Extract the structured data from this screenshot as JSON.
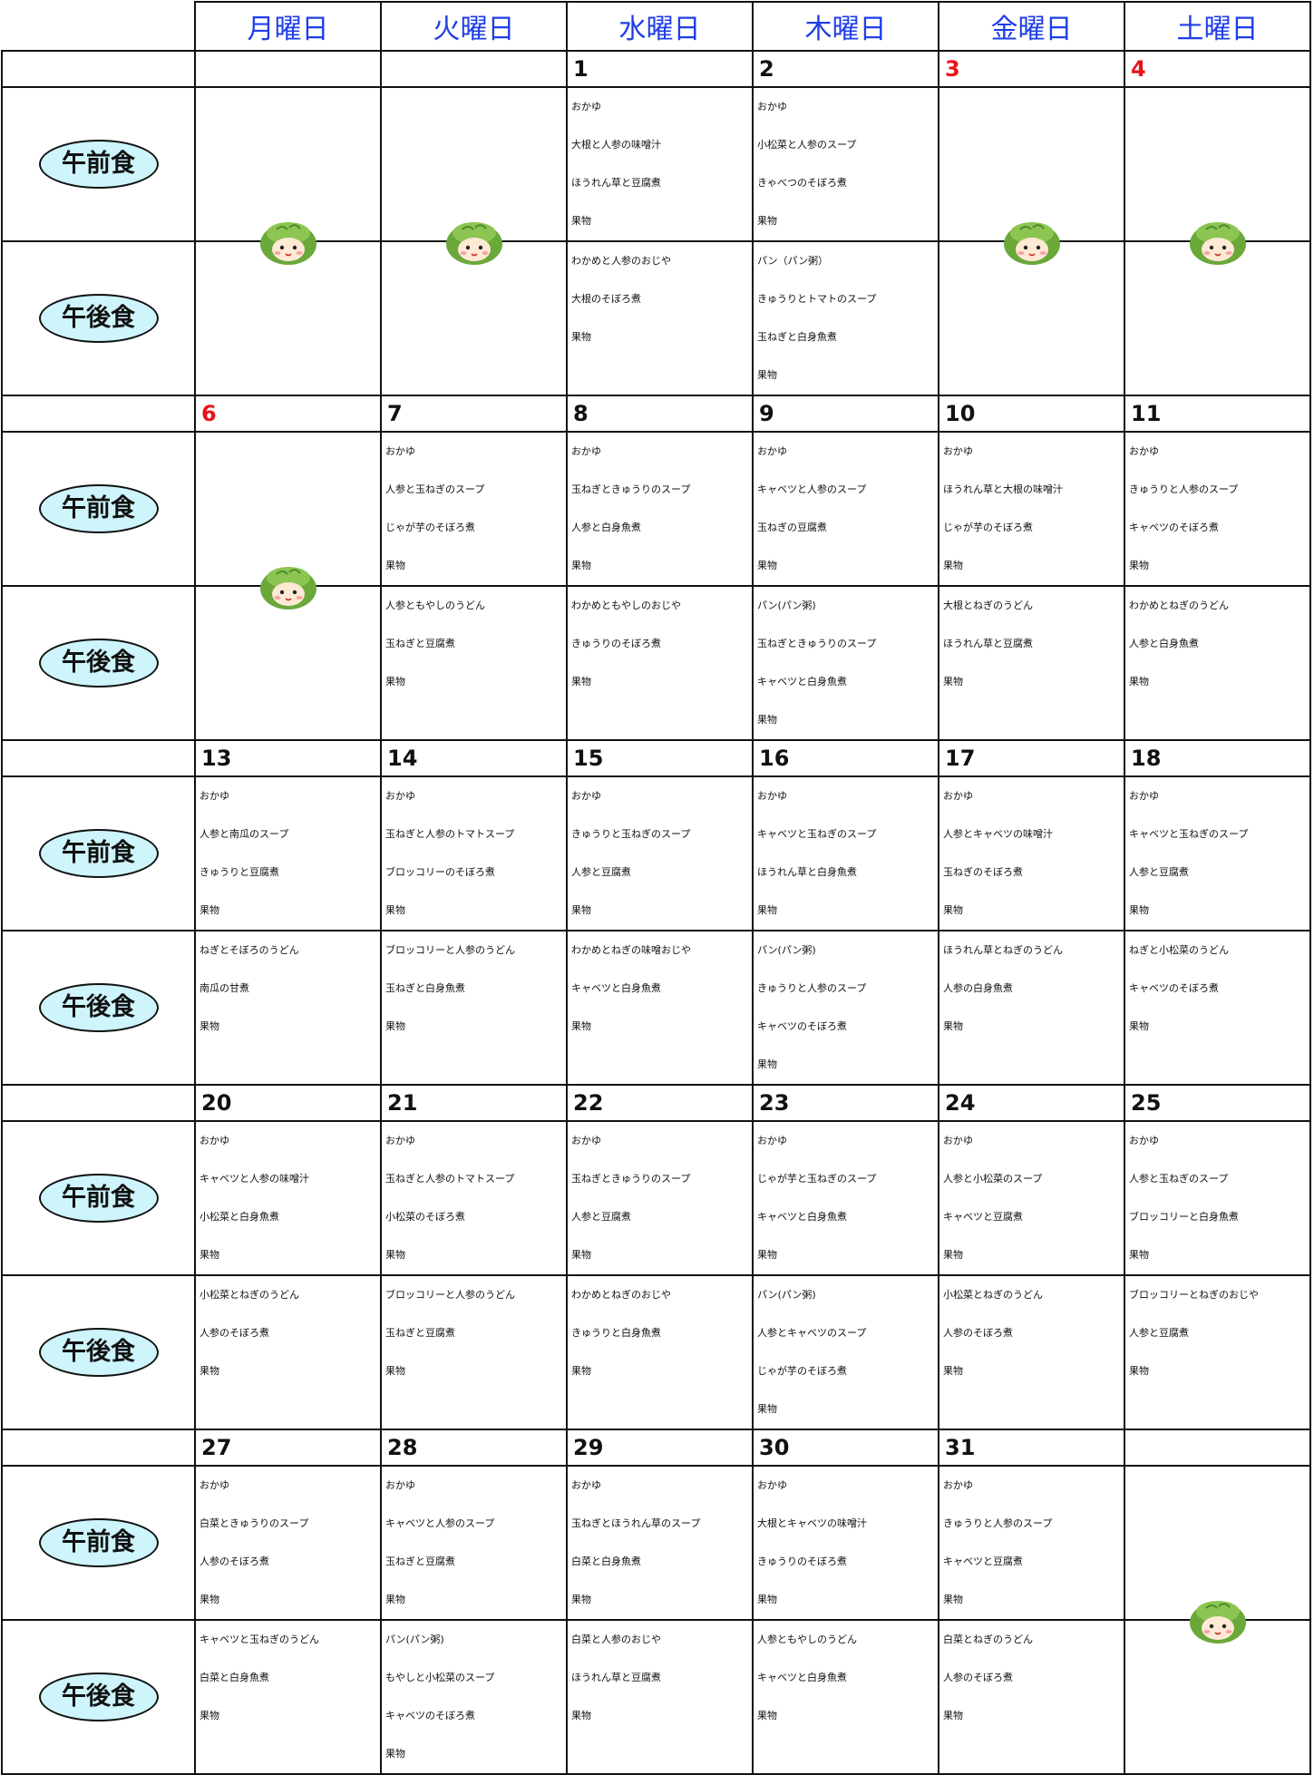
{
  "days": [
    "月曜日",
    "火曜日",
    "水曜日",
    "木曜日",
    "金曜日",
    "土曜日"
  ],
  "meal_labels": [
    "午前食",
    "午後食"
  ],
  "holidays": [
    3,
    4,
    6
  ],
  "holiday_color": "#e8141b",
  "weeks": [
    {
      "dates": [
        null,
        null,
        1,
        2,
        3,
        4
      ],
      "am": [
        null,
        null,
        [
          "おかゆ",
          "大根と人参の味噌汁",
          "ほうれん草と豆腐煮",
          "果物"
        ],
        [
          "おかゆ",
          "小松菜と人参のスープ",
          "きゃべつのそぼろ煮",
          "果物"
        ],
        null,
        null
      ],
      "pm": [
        null,
        null,
        [
          "わかめと人参のおじや",
          "大根のそぼろ煮",
          "果物"
        ],
        [
          "パン（パン粥）",
          "きゅうりとトマトのスープ",
          "玉ねぎと白身魚煮",
          "果物"
        ],
        null,
        null
      ]
    },
    {
      "dates": [
        6,
        7,
        8,
        9,
        10,
        11
      ],
      "am": [
        null,
        [
          "おかゆ",
          "人参と玉ねぎのスープ",
          "じゃが芋のそぼろ煮",
          "果物"
        ],
        [
          "おかゆ",
          "玉ねぎときゅうりのスープ",
          "人参と白身魚煮",
          "果物"
        ],
        [
          "おかゆ",
          "キャベツと人参のスープ",
          "玉ねぎの豆腐煮",
          "果物"
        ],
        [
          "おかゆ",
          "ほうれん草と大根の味噌汁",
          "じゃが芋のそぼろ煮",
          "果物"
        ],
        [
          "おかゆ",
          "きゅうりと人参のスープ",
          "キャベツのそぼろ煮",
          "果物"
        ]
      ],
      "pm": [
        null,
        [
          "人参ともやしのうどん",
          "玉ねぎと豆腐煮",
          "果物"
        ],
        [
          "わかめともやしのおじや",
          "きゅうりのそぼろ煮",
          "果物"
        ],
        [
          "パン(パン粥)",
          "玉ねぎときゅうりのスープ",
          "キャベツと白身魚煮",
          "果物"
        ],
        [
          "大根とねぎのうどん",
          "ほうれん草と豆腐煮",
          "果物"
        ],
        [
          "わかめとねぎのうどん",
          "人参と白身魚煮",
          "果物"
        ]
      ]
    },
    {
      "dates": [
        13,
        14,
        15,
        16,
        17,
        18
      ],
      "am": [
        [
          "おかゆ",
          "人参と南瓜のスープ",
          "きゅうりと豆腐煮",
          "果物"
        ],
        [
          "おかゆ",
          "玉ねぎと人参のトマトスープ",
          "ブロッコリーのそぼろ煮",
          "果物"
        ],
        [
          "おかゆ",
          "きゅうりと玉ねぎのスープ",
          "人参と豆腐煮",
          "果物"
        ],
        [
          "おかゆ",
          "キャベツと玉ねぎのスープ",
          "ほうれん草と白身魚煮",
          "果物"
        ],
        [
          "おかゆ",
          "人参とキャベツの味噌汁",
          "玉ねぎのそぼろ煮",
          "果物"
        ],
        [
          "おかゆ",
          "キャベツと玉ねぎのスープ",
          "人参と豆腐煮",
          "果物"
        ]
      ],
      "pm": [
        [
          "ねぎとそぼろのうどん",
          "南瓜の甘煮",
          "果物"
        ],
        [
          "ブロッコリーと人参のうどん",
          "玉ねぎと白身魚煮",
          "果物"
        ],
        [
          "わかめとねぎの味噌おじや",
          "キャベツと白身魚煮",
          "果物"
        ],
        [
          "パン(パン粥)",
          "きゅうりと人参のスープ",
          "キャベツのそぼろ煮",
          "果物"
        ],
        [
          "ほうれん草とねぎのうどん",
          "人参の白身魚煮",
          "果物"
        ],
        [
          "ねぎと小松菜のうどん",
          "キャベツのそぼろ煮",
          "果物"
        ]
      ]
    },
    {
      "dates": [
        20,
        21,
        22,
        23,
        24,
        25
      ],
      "am": [
        [
          "おかゆ",
          "キャベツと人参の味噌汁",
          "小松菜と白身魚煮",
          "果物"
        ],
        [
          "おかゆ",
          "玉ねぎと人参のトマトスープ",
          "小松菜のそぼろ煮",
          "果物"
        ],
        [
          "おかゆ",
          "玉ねぎときゅうりのスープ",
          "人参と豆腐煮",
          "果物"
        ],
        [
          "おかゆ",
          "じゃが芋と玉ねぎのスープ",
          "キャベツと白身魚煮",
          "果物"
        ],
        [
          "おかゆ",
          "人参と小松菜のスープ",
          "キャベツと豆腐煮",
          "果物"
        ],
        [
          "おかゆ",
          "人参と玉ねぎのスープ",
          "ブロッコリーと白身魚煮",
          "果物"
        ]
      ],
      "pm": [
        [
          "小松菜とねぎのうどん",
          "人参のそぼろ煮",
          "果物"
        ],
        [
          "ブロッコリーと人参のうどん",
          "玉ねぎと豆腐煮",
          "果物"
        ],
        [
          "わかめとねぎのおじや",
          "きゅうりと白身魚煮",
          "果物"
        ],
        [
          "パン(パン粥)",
          "人参とキャベツのスープ",
          "じゃが芋のそぼろ煮",
          "果物"
        ],
        [
          "小松菜とねぎのうどん",
          "人参のそぼろ煮",
          "果物"
        ],
        [
          "ブロッコリーとねぎのおじや",
          "人参と豆腐煮",
          "果物"
        ]
      ]
    },
    {
      "dates": [
        27,
        28,
        29,
        30,
        31,
        null
      ],
      "am": [
        [
          "おかゆ",
          "白菜ときゅうりのスープ",
          "人参のそぼろ煮",
          "果物"
        ],
        [
          "おかゆ",
          "キャベツと人参のスープ",
          "玉ねぎと豆腐煮",
          "果物"
        ],
        [
          "おかゆ",
          "玉ねぎとほうれん草のスープ",
          "白菜と白身魚煮",
          "果物"
        ],
        [
          "おかゆ",
          "大根とキャベツの味噌汁",
          "きゅうりのそぼろ煮",
          "果物"
        ],
        [
          "おかゆ",
          "きゅうりと人参のスープ",
          "キャベツと豆腐煮",
          "果物"
        ],
        null
      ],
      "pm": [
        [
          "キャベツと玉ねぎのうどん",
          "白菜と白身魚煮",
          "果物"
        ],
        [
          "パン(パン粥)",
          "もやしと小松菜のスープ",
          "キャベツのそぼろ煮",
          "果物"
        ],
        [
          "白菜と人参のおじや",
          "ほうれん草と豆腐煮",
          "果物"
        ],
        [
          "人参ともやしのうどん",
          "キャベツと白身魚煮",
          "果物"
        ],
        [
          "白菜とねぎのうどん",
          "人参のそぼろ煮",
          "果物"
        ],
        null
      ]
    }
  ]
}
